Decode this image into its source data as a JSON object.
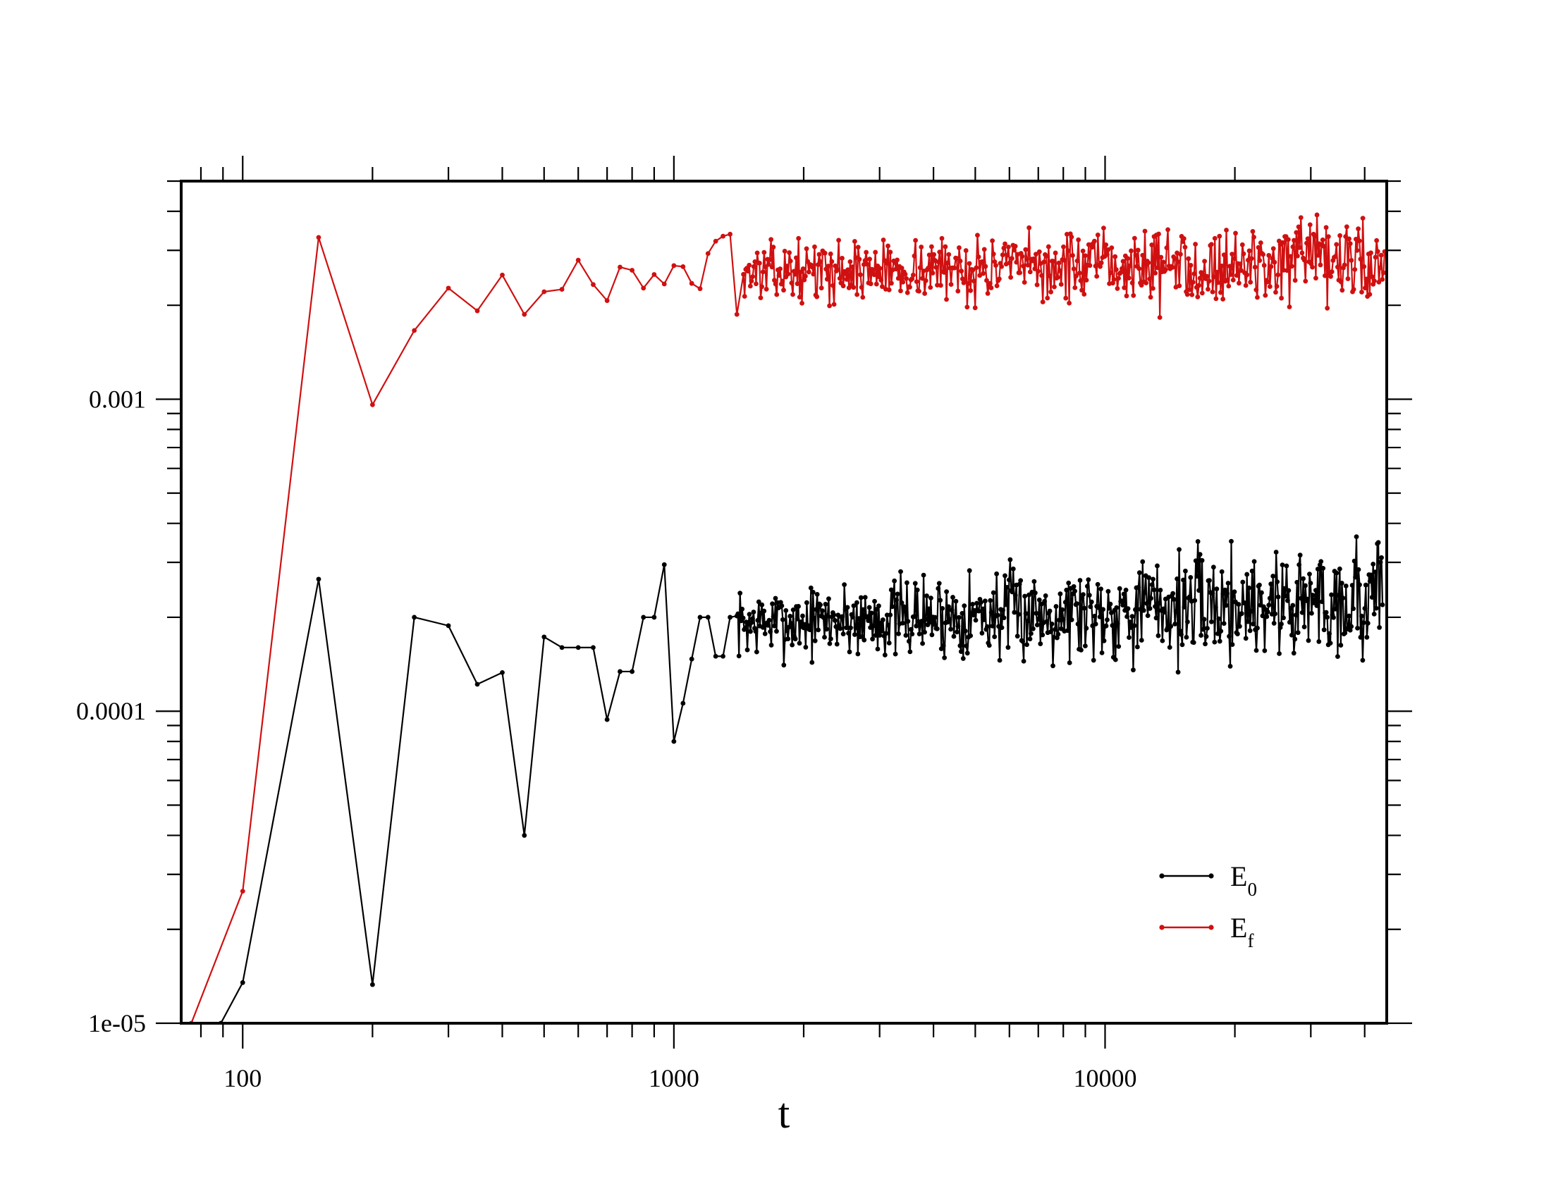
{
  "chart_data": {
    "type": "line",
    "xlabel": "t",
    "ylabel": "",
    "xscale": "log",
    "yscale": "log",
    "xlim": [
      72,
      45000
    ],
    "ylim": [
      1e-05,
      0.005
    ],
    "grid": false,
    "legend_position": "bottom-right",
    "x_ticklabels": [
      {
        "value": 100,
        "label": "100"
      },
      {
        "value": 1000,
        "label": "1000"
      },
      {
        "value": 10000,
        "label": "10000"
      }
    ],
    "y_ticklabels": [
      {
        "value": 1e-05,
        "label": "1e-05"
      },
      {
        "value": 0.0001,
        "label": "0.0001"
      },
      {
        "value": 0.001,
        "label": "0.001"
      }
    ],
    "series": [
      {
        "name": "E",
        "subscript": "0",
        "color": "#000000",
        "anchors": [
          [
            89,
            1e-05
          ],
          [
            100,
            1.35e-05
          ],
          [
            150,
            0.000265
          ],
          [
            200,
            1.33e-05
          ],
          [
            250,
            0.0002
          ],
          [
            300,
            0.000188
          ],
          [
            350,
            0.000122
          ],
          [
            400,
            0.000133
          ],
          [
            450,
            4e-05
          ],
          [
            500,
            0.000173
          ],
          [
            550,
            0.00016
          ],
          [
            600,
            0.00016
          ],
          [
            650,
            0.00016
          ],
          [
            700,
            9.4e-05
          ],
          [
            750,
            0.000134
          ],
          [
            800,
            0.000134
          ],
          [
            850,
            0.0002
          ],
          [
            900,
            0.0002
          ],
          [
            950,
            0.000295
          ],
          [
            1000,
            8e-05
          ],
          [
            1050,
            0.000106
          ],
          [
            1100,
            0.000147
          ],
          [
            1150,
            0.0002
          ],
          [
            1200,
            0.0002
          ],
          [
            1250,
            0.00015
          ],
          [
            1300,
            0.00015
          ],
          [
            1350,
            0.0002
          ]
        ],
        "noise": {
          "t_start": 1400,
          "t_end": 44000,
          "n": 620,
          "seed": 7,
          "center_start": 0.00019,
          "center_end": 0.00023,
          "spread_start": 0.15,
          "spread_end": 0.3,
          "min": 9.4e-05,
          "max": 0.00042
        }
      },
      {
        "name": "E",
        "subscript": "f",
        "color": "#d01010",
        "anchors": [
          [
            76,
            1e-05
          ],
          [
            100,
            2.65e-05
          ],
          [
            150,
            0.0033
          ],
          [
            200,
            0.00096
          ],
          [
            250,
            0.00166
          ],
          [
            300,
            0.00227
          ],
          [
            350,
            0.00192
          ],
          [
            400,
            0.0025
          ],
          [
            450,
            0.00187
          ],
          [
            500,
            0.00221
          ],
          [
            550,
            0.00225
          ],
          [
            600,
            0.00279
          ],
          [
            650,
            0.00233
          ],
          [
            700,
            0.00207
          ],
          [
            750,
            0.00265
          ],
          [
            800,
            0.00259
          ],
          [
            850,
            0.00227
          ],
          [
            900,
            0.00251
          ],
          [
            950,
            0.00234
          ],
          [
            1000,
            0.00268
          ],
          [
            1050,
            0.00266
          ],
          [
            1100,
            0.00235
          ],
          [
            1150,
            0.00226
          ],
          [
            1200,
            0.00293
          ],
          [
            1250,
            0.00321
          ],
          [
            1300,
            0.00333
          ],
          [
            1350,
            0.00338
          ],
          [
            1400,
            0.00187
          ]
        ],
        "noise": {
          "t_start": 1450,
          "t_end": 44500,
          "n": 560,
          "seed": 13,
          "center_start": 0.00255,
          "center_end": 0.00275,
          "spread_start": 0.12,
          "spread_end": 0.2,
          "min": 0.00152,
          "max": 0.0048
        }
      }
    ]
  }
}
